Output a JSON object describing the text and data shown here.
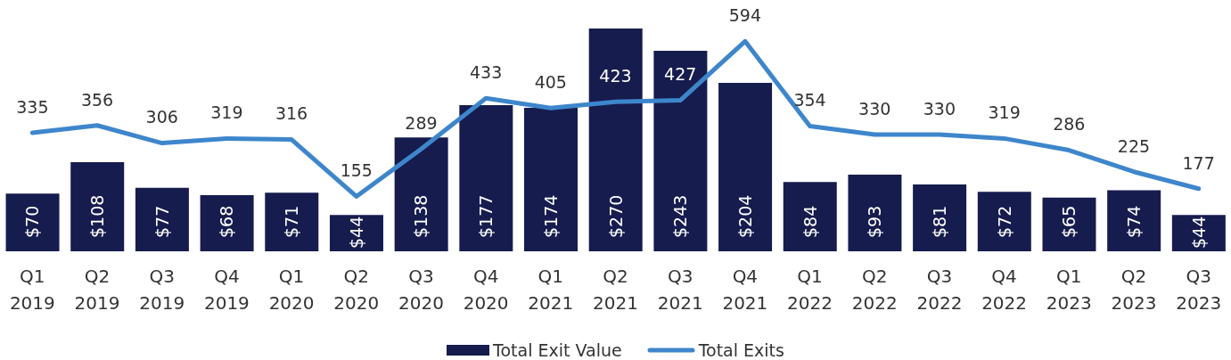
{
  "chart_data": {
    "type": "bar",
    "categories": [
      "Q1 2019",
      "Q2 2019",
      "Q3 2019",
      "Q4 2019",
      "Q1 2020",
      "Q2 2020",
      "Q3 2020",
      "Q4 2020",
      "Q1 2021",
      "Q2 2021",
      "Q3 2021",
      "Q4 2021",
      "Q1 2022",
      "Q2 2022",
      "Q3 2022",
      "Q4 2022",
      "Q1 2023",
      "Q2 2023",
      "Q3 2023"
    ],
    "series": [
      {
        "name": "Total Exit Value",
        "color": "#161c4e",
        "values": [
          70,
          108,
          77,
          68,
          71,
          44,
          138,
          177,
          174,
          270,
          243,
          204,
          84,
          93,
          81,
          72,
          65,
          74,
          44
        ],
        "value_labels": [
          "$70",
          "$108",
          "$77",
          "$68",
          "$71",
          "$44",
          "$138",
          "$177",
          "$174",
          "$270",
          "$243",
          "$204",
          "$84",
          "$93",
          "$81",
          "$72",
          "$65",
          "$74",
          "$44"
        ]
      },
      {
        "name": "Total Exits",
        "type": "line",
        "axis": "y2",
        "color": "#3e86cb",
        "values": [
          335,
          356,
          306,
          319,
          316,
          155,
          289,
          433,
          405,
          423,
          427,
          594,
          354,
          330,
          330,
          319,
          286,
          225,
          177
        ],
        "value_labels": [
          "335",
          "356",
          "306",
          "319",
          "316",
          "155",
          "289",
          "433",
          "405",
          "423",
          "427",
          "594",
          "354",
          "330",
          "330",
          "319",
          "286",
          "225",
          "177"
        ]
      }
    ],
    "ylim": [
      0,
      270
    ],
    "y2lim": [
      0,
      630
    ],
    "tick_labels": "x",
    "legend": "bottom",
    "marker": "none",
    "line_style": "solid"
  }
}
